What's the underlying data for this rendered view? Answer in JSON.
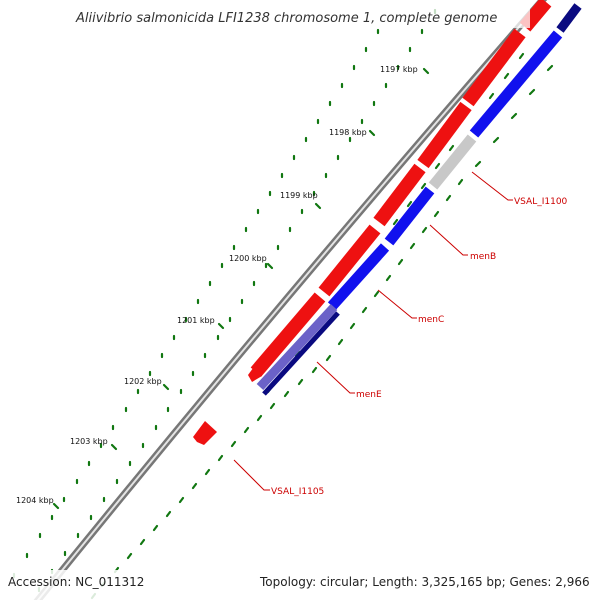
{
  "title": "Aliivibrio salmonicida LFI1238 chromosome 1, complete genome",
  "footer": {
    "accession": "Accession: NC_011312",
    "summary": "Topology: circular; Length: 3,325,165 bp; Genes: 2,966"
  },
  "ruler": {
    "labels": [
      "1197 kbp",
      "1198 kbp",
      "1199 kbp",
      "1200 kbp",
      "1201 kbp",
      "1202 kbp",
      "1203 kbp",
      "1204 kbp"
    ]
  },
  "genes": [
    {
      "name": "VSAL_I1100",
      "color": "#cc0000"
    },
    {
      "name": "menB",
      "color": "#cc0000"
    },
    {
      "name": "menC",
      "color": "#cc0000"
    },
    {
      "name": "menE",
      "color": "#cc0000"
    },
    {
      "name": "VSAL_I1105",
      "color": "#cc0000"
    }
  ],
  "colors": {
    "forward_feature": "#ee1111",
    "reverse_feature": "#1111ee",
    "pseudo_feature": "#c8c8c8",
    "dark_feature": "#0a0a80",
    "light_feature": "#6b62c8",
    "backbone": "#8a8a8a",
    "tick": "#117711",
    "label_line": "#cc0000"
  }
}
